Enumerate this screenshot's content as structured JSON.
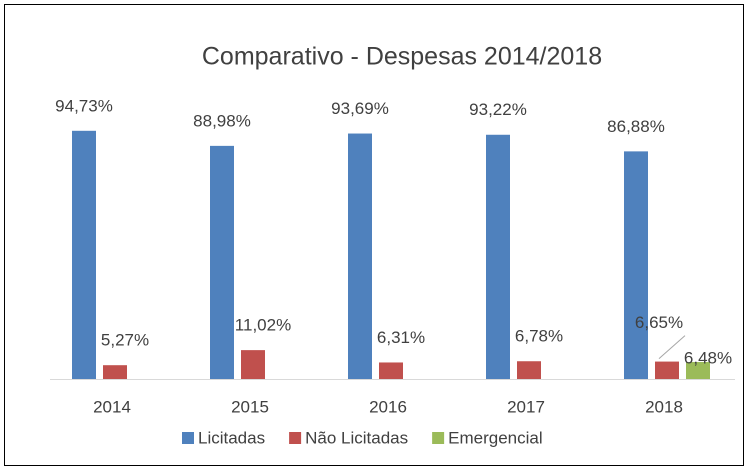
{
  "chart_data": {
    "type": "bar",
    "title": "Comparativo - Despesas 2014/2018",
    "categories": [
      "2014",
      "2015",
      "2016",
      "2017",
      "2018"
    ],
    "series": [
      {
        "name": "Licitadas",
        "color": "#4F81BD",
        "values": [
          94.73,
          88.98,
          93.69,
          93.22,
          86.88
        ],
        "value_labels": [
          "94,73%",
          "88,98%",
          "93,69%",
          "93,22%",
          "86,88%"
        ]
      },
      {
        "name": "Não Licitadas",
        "color": "#C0504D",
        "values": [
          5.27,
          11.02,
          6.31,
          6.78,
          6.65
        ],
        "value_labels": [
          "5,27%",
          "11,02%",
          "6,31%",
          "6,78%",
          "6,65%"
        ]
      },
      {
        "name": "Emergencial",
        "color": "#9BBB59",
        "values": [
          null,
          null,
          null,
          null,
          6.48
        ],
        "value_labels": [
          null,
          null,
          null,
          null,
          "6,48%"
        ]
      }
    ],
    "ylim": [
      0,
      100
    ],
    "legend": "bottom"
  }
}
